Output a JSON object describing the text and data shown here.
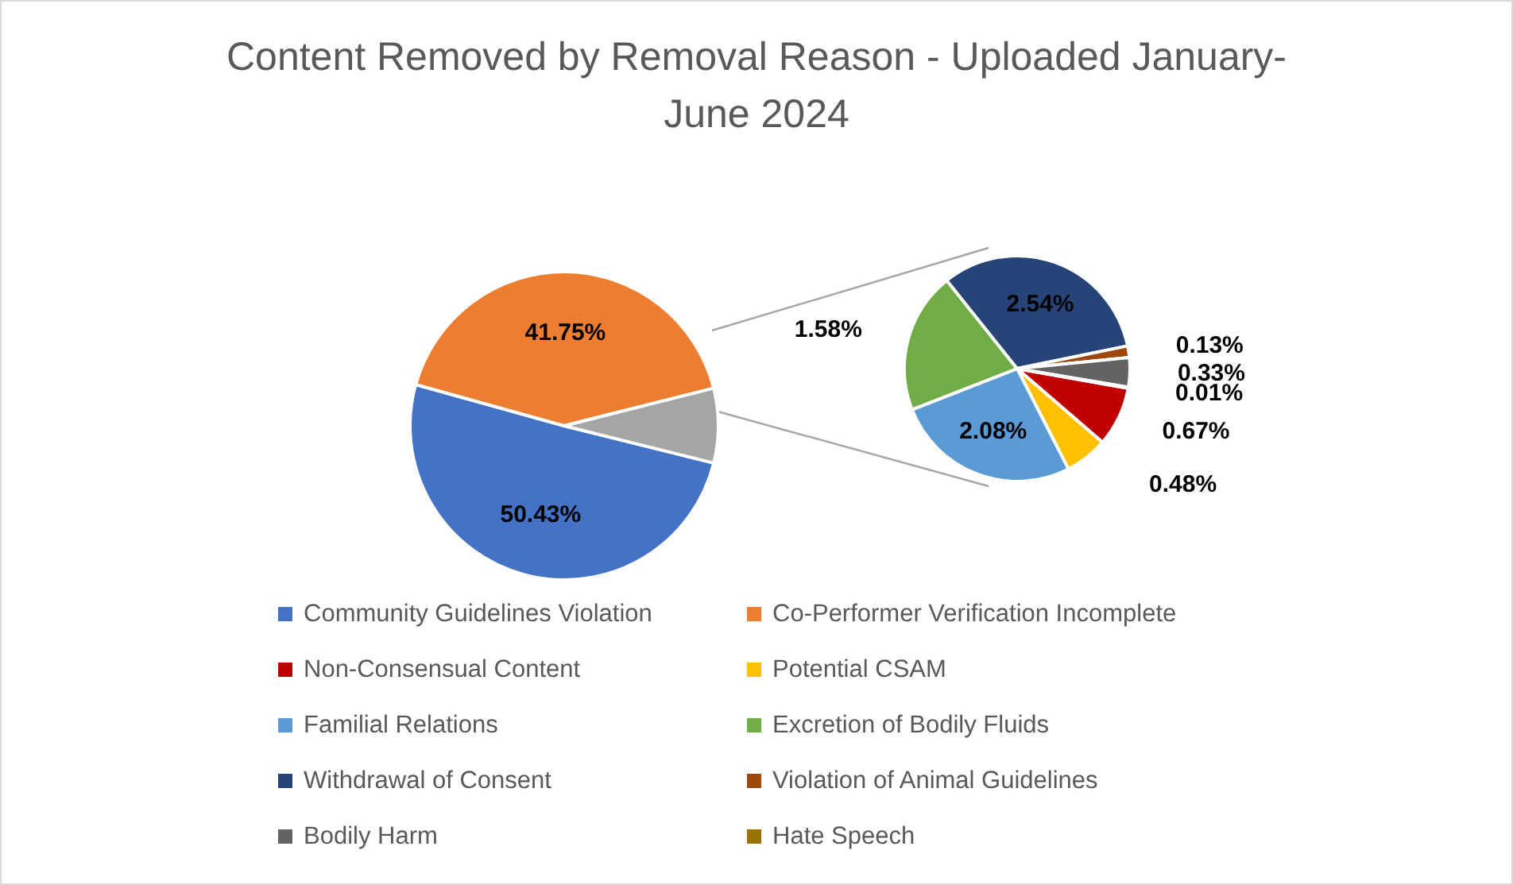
{
  "chart_data": [
    {
      "type": "pie",
      "title": "Content Removed by Removal Reason - Uploaded January-June 2024",
      "categories": [
        "Community Guidelines Violation",
        "Co-Performer Verification Incomplete",
        null
      ],
      "values": [
        50.43,
        41.75,
        7.82
      ],
      "colors": [
        "#4472c4",
        "#ed7d31",
        "#a5a5a5"
      ],
      "value_labels": [
        "50.43%",
        "41.75%",
        null
      ],
      "legend": "bottom"
    },
    {
      "type": "pie",
      "categories": [
        "Non-Consensual Content",
        "Potential CSAM",
        "Familial Relations",
        "Excretion of Bodily Fluids",
        "Withdrawal of Consent",
        "Violation of Animal Guidelines",
        "Bodily Harm",
        "Hate Speech"
      ],
      "values": [
        0.67,
        0.48,
        2.08,
        1.58,
        2.54,
        0.13,
        0.33,
        0.01
      ],
      "colors": [
        "#c00000",
        "#ffc000",
        "#5b9bd5",
        "#70ad47",
        "#264478",
        "#9e480e",
        "#636363",
        "#997300"
      ],
      "value_labels": [
        "0.67%",
        "0.48%",
        "2.08%",
        "1.58%",
        "2.54%",
        "0.13%",
        "0.33%",
        "0.01%"
      ],
      "legend": "bottom"
    }
  ]
}
